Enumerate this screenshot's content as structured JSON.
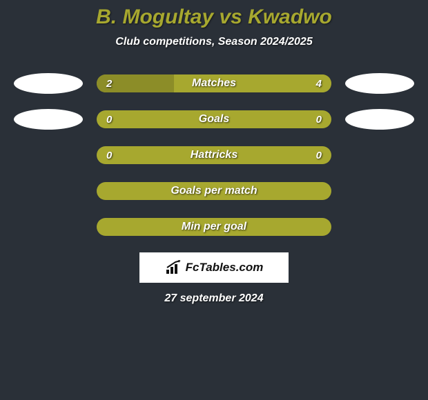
{
  "title": "B. Mogultay vs Kwadwo",
  "subtitle": "Club competitions, Season 2024/2025",
  "date": "27 september 2024",
  "logo_text": "FcTables.com",
  "colors": {
    "background": "#2a3038",
    "accent": "#a7a82f",
    "accent_dark": "#8c8d28",
    "ellipse": "#ffffff",
    "text": "#ffffff"
  },
  "rows": [
    {
      "label": "Matches",
      "left_value": "2",
      "right_value": "4",
      "left_pct": 33,
      "right_pct": 67,
      "left_color": "#8c8d28",
      "right_color": "#a7a82f",
      "bar_bg": "#a7a82f",
      "show_ellipses": true,
      "show_values": true
    },
    {
      "label": "Goals",
      "left_value": "0",
      "right_value": "0",
      "left_pct": 0,
      "right_pct": 0,
      "left_color": "#8c8d28",
      "right_color": "#a7a82f",
      "bar_bg": "#a7a82f",
      "show_ellipses": true,
      "show_values": true
    },
    {
      "label": "Hattricks",
      "left_value": "0",
      "right_value": "0",
      "left_pct": 0,
      "right_pct": 0,
      "left_color": "#8c8d28",
      "right_color": "#a7a82f",
      "bar_bg": "#a7a82f",
      "show_ellipses": false,
      "show_values": true
    },
    {
      "label": "Goals per match",
      "left_value": "",
      "right_value": "",
      "left_pct": 0,
      "right_pct": 0,
      "left_color": "#8c8d28",
      "right_color": "#a7a82f",
      "bar_bg": "#a7a82f",
      "show_ellipses": false,
      "show_values": false
    },
    {
      "label": "Min per goal",
      "left_value": "",
      "right_value": "",
      "left_pct": 0,
      "right_pct": 0,
      "left_color": "#8c8d28",
      "right_color": "#a7a82f",
      "bar_bg": "#a7a82f",
      "show_ellipses": false,
      "show_values": false
    }
  ]
}
